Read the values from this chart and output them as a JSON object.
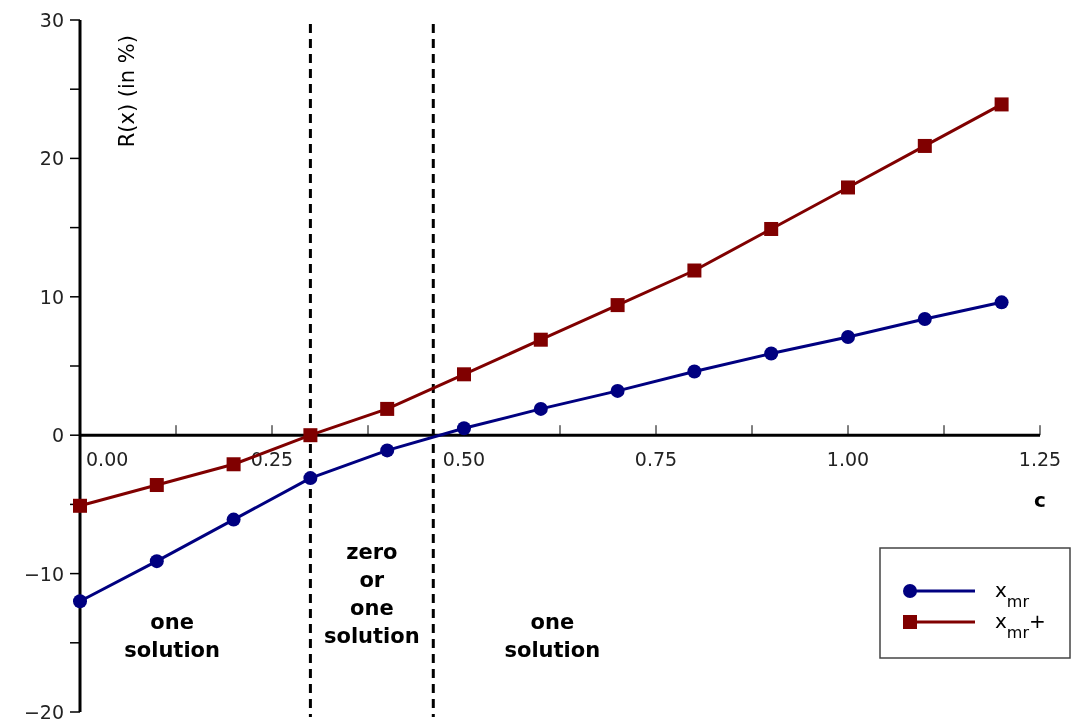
{
  "chart_data": {
    "type": "line",
    "xlabel": "c",
    "ylabel": "R(x)  (in %)",
    "x": [
      0,
      0.1,
      0.2,
      0.3,
      0.4,
      0.5,
      0.6,
      0.7,
      0.8,
      0.9,
      1.0,
      1.1,
      1.2
    ],
    "series": [
      {
        "name": "x$_{mr}$",
        "color": "#000080",
        "marker": "circle",
        "values": [
          -12,
          -9.1,
          -6.1,
          -3.1,
          -1.1,
          0.5,
          1.9,
          3.2,
          4.6,
          5.9,
          7.1,
          8.4,
          9.6
        ]
      },
      {
        "name": "x$_{mr}$+",
        "color": "#800000",
        "marker": "square",
        "values": [
          -5.1,
          -3.6,
          -2.1,
          0,
          1.9,
          4.4,
          6.9,
          9.4,
          11.9,
          14.9,
          17.9,
          20.9,
          23.9
        ]
      }
    ],
    "xlim": [
      0,
      1.25
    ],
    "ylim": [
      -20,
      30
    ],
    "xticks": [
      {
        "value": 0,
        "label": "0.00"
      },
      {
        "value": 0.125,
        "label": null
      },
      0.25,
      {
        "value": 0.375,
        "label": null
      },
      {
        "value": 0.5,
        "label": "0.50"
      },
      {
        "value": 0.625,
        "label": null
      },
      0.75,
      {
        "value": 0.875,
        "label": null
      },
      {
        "value": 1,
        "label": "1.00"
      },
      {
        "value": 1.125,
        "label": null
      },
      1.25
    ],
    "yticks": [
      -20,
      {
        "value": -15,
        "label": null
      },
      -10,
      {
        "value": -5,
        "label": null
      },
      0,
      {
        "value": 5,
        "label": null
      },
      10,
      {
        "value": 15,
        "label": null
      },
      20,
      {
        "value": 25,
        "label": null
      },
      30
    ],
    "ref_lines": [
      {
        "axis": "x",
        "value": 0.3,
        "color": "#000000",
        "line_style": "dashed"
      },
      {
        "axis": "x",
        "value": 0.46,
        "color": "#000000",
        "line_style": "dashed"
      }
    ],
    "annotations": [
      "one\nsolution",
      "zero\nor\none\nsolution",
      "one\nsolution"
    ],
    "legend": "bottom right",
    "grid": false,
    "line_style": "solid"
  }
}
